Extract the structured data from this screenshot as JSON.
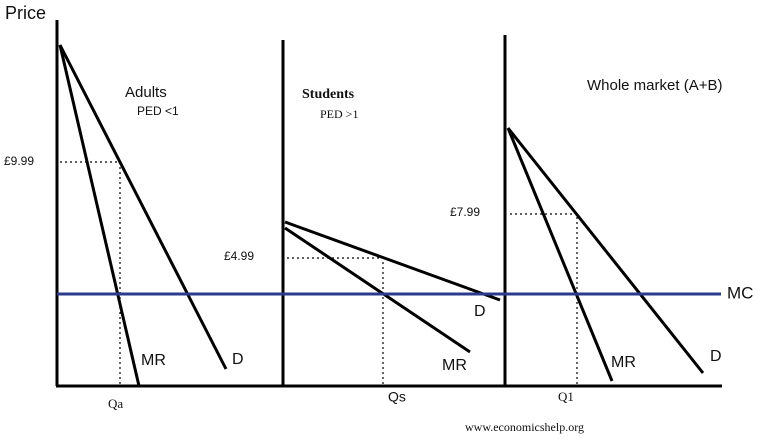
{
  "axis_label": "Price",
  "panels": [
    {
      "title": "Adults",
      "subtitle": "PED <1",
      "price": "£9.99",
      "quantity": "Qa",
      "mr": "MR",
      "d": "D"
    },
    {
      "title": "Students",
      "subtitle": "PED >1",
      "price": "£4.99",
      "quantity": "Qs",
      "mr": "MR",
      "d": "D"
    },
    {
      "title": "Whole market (A+B)",
      "price": "£7.99",
      "quantity": "Q1",
      "mr": "MR",
      "d": "D"
    }
  ],
  "mc_label": "MC",
  "source": "www.economicshelp.org"
}
